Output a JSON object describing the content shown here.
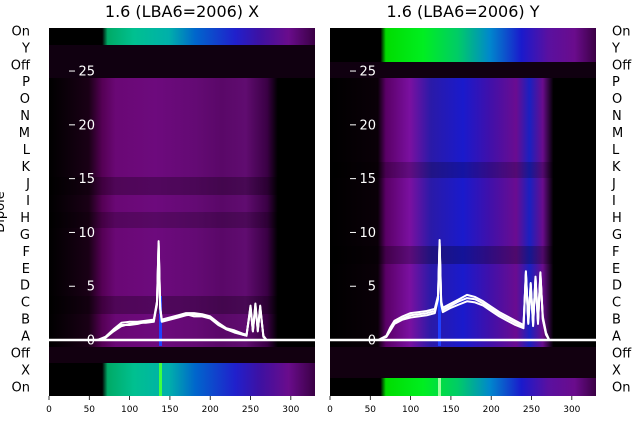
{
  "chart_data": [
    {
      "type": "heatmap",
      "title": "1.6 (LBA6=2006) X",
      "ylabel": "Dipole",
      "xticks": [
        0,
        50,
        100,
        150,
        200,
        250,
        300
      ],
      "xlim": [
        0,
        330
      ],
      "row_labels": [
        "On",
        "X",
        "Off",
        "A",
        "B",
        "C",
        "D",
        "E",
        "F",
        "G",
        "H",
        "I",
        "J",
        "K",
        "L",
        "M",
        "N",
        "O",
        "P",
        "Off",
        "Y",
        "On"
      ],
      "overlay_yticks": [
        0,
        5,
        10,
        15,
        20,
        25
      ],
      "overlay_ylim": [
        -5.2,
        29
      ],
      "overlay_lines": [
        {
          "x": [
            0,
            60,
            70,
            80,
            90,
            100,
            110,
            120,
            130,
            134,
            136,
            138,
            140,
            150,
            160,
            170,
            180,
            190,
            200,
            210,
            220,
            230,
            240,
            245,
            250,
            253,
            256,
            259,
            262,
            266,
            270,
            280,
            330
          ],
          "y": [
            0,
            0,
            0.2,
            0.8,
            1.3,
            1.5,
            1.6,
            1.6,
            1.7,
            3.5,
            9.2,
            3,
            1.7,
            1.9,
            2.1,
            2.3,
            2.4,
            2.3,
            2.1,
            1.5,
            1,
            0.8,
            0.5,
            0.4,
            3.1,
            0.8,
            3.3,
            0.9,
            3.1,
            0.3,
            0,
            0,
            0
          ]
        },
        {
          "x": [
            0,
            60,
            70,
            80,
            90,
            100,
            110,
            120,
            130,
            134,
            136,
            138,
            140,
            150,
            160,
            170,
            180,
            190,
            200,
            210,
            220,
            230,
            240,
            245,
            250,
            253,
            256,
            259,
            262,
            266,
            270,
            280,
            330
          ],
          "y": [
            0,
            0,
            0.3,
            1,
            1.6,
            1.7,
            1.7,
            1.8,
            1.9,
            3.6,
            9,
            3.1,
            1.9,
            2.1,
            2.3,
            2.5,
            2.5,
            2.4,
            2.2,
            1.6,
            1.1,
            0.9,
            0.6,
            0.5,
            2.9,
            0.9,
            3.1,
            1,
            2.9,
            0.4,
            0,
            0,
            0
          ]
        },
        {
          "x": [
            0,
            60,
            70,
            80,
            90,
            100,
            110,
            120,
            130,
            134,
            136,
            138,
            140,
            150,
            160,
            170,
            180,
            190,
            200,
            210,
            220,
            230,
            240,
            245,
            250,
            253,
            256,
            259,
            262,
            266,
            270,
            280,
            330
          ],
          "y": [
            0,
            0,
            0.2,
            0.9,
            1.4,
            1.4,
            1.5,
            1.7,
            1.8,
            3.3,
            8.8,
            2.9,
            1.8,
            2,
            2.2,
            2.4,
            2.2,
            2.2,
            2,
            1.4,
            1,
            0.7,
            0.5,
            0.4,
            3.2,
            0.8,
            3.4,
            0.8,
            3.2,
            0.3,
            0,
            0,
            0
          ]
        }
      ]
    },
    {
      "type": "heatmap",
      "title": "1.6 (LBA6=2006) Y",
      "xticks": [
        0,
        50,
        100,
        150,
        200,
        250,
        300
      ],
      "xlim": [
        0,
        330
      ],
      "row_labels": [
        "On",
        "X",
        "Off",
        "A",
        "B",
        "C",
        "D",
        "E",
        "F",
        "G",
        "H",
        "I",
        "J",
        "K",
        "L",
        "M",
        "N",
        "O",
        "P",
        "Off",
        "Y",
        "On"
      ],
      "overlay_yticks": [
        0,
        5,
        10,
        15,
        20,
        25
      ],
      "overlay_ylim": [
        -5.2,
        29
      ],
      "overlay_lines": [
        {
          "x": [
            0,
            60,
            70,
            75,
            80,
            90,
            100,
            110,
            120,
            130,
            134,
            136,
            138,
            140,
            150,
            160,
            170,
            180,
            190,
            200,
            210,
            220,
            230,
            240,
            243,
            246,
            249,
            252,
            255,
            258,
            261,
            264,
            268,
            272,
            280,
            330
          ],
          "y": [
            0,
            0,
            0.3,
            1,
            1.6,
            2,
            2.3,
            2.4,
            2.5,
            2.7,
            4,
            9.3,
            3.5,
            2.8,
            3.2,
            3.6,
            3.9,
            3.8,
            3.4,
            2.9,
            2.4,
            2,
            1.6,
            1.2,
            6.4,
            1.6,
            5.2,
            1.4,
            5.8,
            1.6,
            6.2,
            2,
            0.6,
            0,
            0,
            0
          ]
        },
        {
          "x": [
            0,
            60,
            70,
            75,
            80,
            90,
            100,
            110,
            120,
            130,
            134,
            136,
            138,
            140,
            150,
            160,
            170,
            180,
            190,
            200,
            210,
            220,
            230,
            240,
            243,
            246,
            249,
            252,
            255,
            258,
            261,
            264,
            268,
            272,
            280,
            330
          ],
          "y": [
            0,
            0,
            0.4,
            1.2,
            1.8,
            2.2,
            2.5,
            2.6,
            2.7,
            2.9,
            4.1,
            9,
            3.6,
            3,
            3.4,
            3.8,
            4.2,
            4,
            3.6,
            3.1,
            2.6,
            2.2,
            1.8,
            1.4,
            6.1,
            1.8,
            5,
            1.6,
            5.6,
            1.8,
            6,
            2.2,
            0.7,
            0,
            0,
            0
          ]
        },
        {
          "x": [
            0,
            60,
            70,
            75,
            80,
            90,
            100,
            110,
            120,
            130,
            134,
            136,
            138,
            140,
            150,
            160,
            170,
            180,
            190,
            200,
            210,
            220,
            230,
            240,
            243,
            246,
            249,
            252,
            255,
            258,
            261,
            264,
            268,
            272,
            280,
            330
          ],
          "y": [
            0,
            0,
            0.3,
            0.9,
            1.5,
            1.9,
            2.1,
            2.2,
            2.3,
            2.5,
            3.8,
            8.8,
            3.3,
            2.6,
            3,
            3.3,
            3.6,
            3.5,
            3.2,
            2.7,
            2.2,
            1.8,
            1.4,
            1.1,
            6.3,
            1.5,
            5.3,
            1.3,
            5.9,
            1.5,
            6.3,
            1.9,
            0.5,
            0,
            0,
            0
          ]
        }
      ]
    }
  ]
}
